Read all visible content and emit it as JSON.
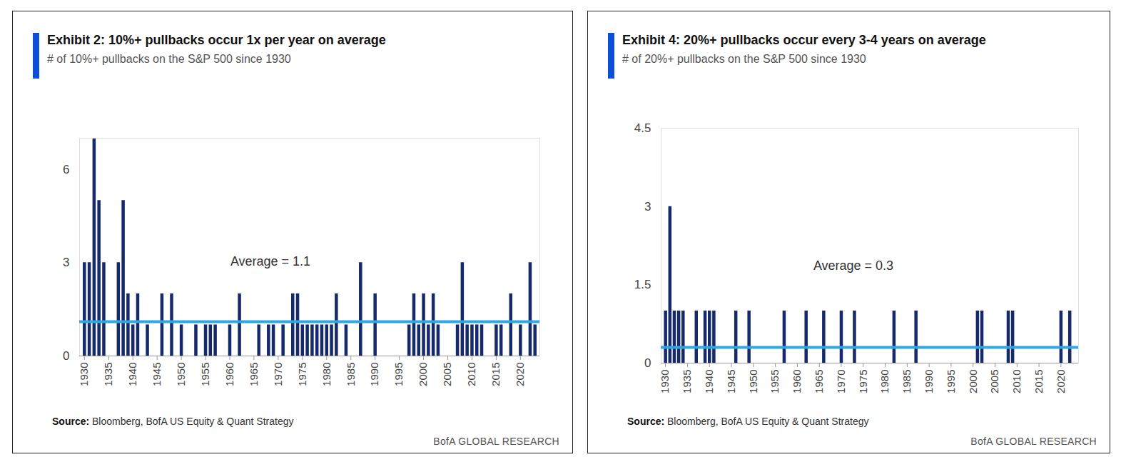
{
  "chart_data": [
    {
      "type": "bar",
      "title": "Exhibit 2: 10%+ pullbacks occur 1x per year on average",
      "subtitle": "# of 10%+ pullbacks on the S&P 500 since 1930",
      "x": [
        1930,
        1931,
        1932,
        1933,
        1934,
        1937,
        1938,
        1939,
        1940,
        1941,
        1943,
        1946,
        1948,
        1950,
        1953,
        1955,
        1956,
        1957,
        1960,
        1962,
        1966,
        1968,
        1969,
        1971,
        1973,
        1974,
        1975,
        1976,
        1977,
        1978,
        1979,
        1980,
        1981,
        1982,
        1984,
        1987,
        1990,
        1997,
        1998,
        1999,
        2000,
        2001,
        2002,
        2003,
        2007,
        2008,
        2009,
        2010,
        2011,
        2012,
        2015,
        2016,
        2018,
        2020,
        2022,
        2023
      ],
      "values": [
        3,
        3,
        7,
        5,
        3,
        3,
        5,
        2,
        1,
        2,
        1,
        2,
        2,
        1,
        1,
        1,
        1,
        1,
        1,
        2,
        1,
        1,
        1,
        1,
        2,
        2,
        1,
        1,
        1,
        1,
        1,
        1,
        1,
        2,
        1,
        3,
        2,
        1,
        2,
        1,
        2,
        1,
        2,
        1,
        1,
        3,
        1,
        1,
        1,
        1,
        1,
        1,
        2,
        1,
        3,
        1
      ],
      "color": "#15296b",
      "xlim": [
        1929,
        2024
      ],
      "xticks": [
        1930,
        1935,
        1940,
        1945,
        1950,
        1955,
        1960,
        1965,
        1970,
        1975,
        1980,
        1985,
        1990,
        1995,
        2000,
        2005,
        2010,
        2015,
        2020
      ],
      "ylim": [
        0,
        7
      ],
      "yticks": [
        0,
        3,
        6
      ],
      "average": {
        "value": 1.1,
        "label": "Average = 1.1",
        "color": "#2fa7e0"
      },
      "source_label": "Source:",
      "source": "Bloomberg, BofA US Equity & Quant Strategy",
      "footer": "BofA GLOBAL RESEARCH"
    },
    {
      "type": "bar",
      "title": "Exhibit 4: 20%+ pullbacks occur every 3-4 years on average",
      "subtitle": "# of 20%+ pullbacks on the S&P 500 since 1930",
      "x": [
        1930,
        1931,
        1932,
        1933,
        1934,
        1937,
        1939,
        1940,
        1941,
        1946,
        1949,
        1957,
        1962,
        1966,
        1970,
        1973,
        1982,
        1987,
        2001,
        2002,
        2008,
        2009,
        2020,
        2022
      ],
      "values": [
        1,
        3,
        1,
        1,
        1,
        1,
        1,
        1,
        1,
        1,
        1,
        1,
        1,
        1,
        1,
        1,
        1,
        1,
        1,
        1,
        1,
        1,
        1,
        1
      ],
      "color": "#15296b",
      "xlim": [
        1929,
        2024
      ],
      "xticks": [
        1930,
        1935,
        1940,
        1945,
        1950,
        1955,
        1960,
        1965,
        1970,
        1975,
        1980,
        1985,
        1990,
        1995,
        2000,
        2005,
        2010,
        2015,
        2020
      ],
      "ylim": [
        0,
        4.5
      ],
      "yticks": [
        0,
        1.5,
        3,
        4.5
      ],
      "average": {
        "value": 0.3,
        "label": "Average = 0.3",
        "color": "#2fa7e0"
      },
      "source_label": "Source:",
      "source": "Bloomberg, BofA US Equity & Quant Strategy",
      "footer": "BofA GLOBAL RESEARCH"
    }
  ]
}
